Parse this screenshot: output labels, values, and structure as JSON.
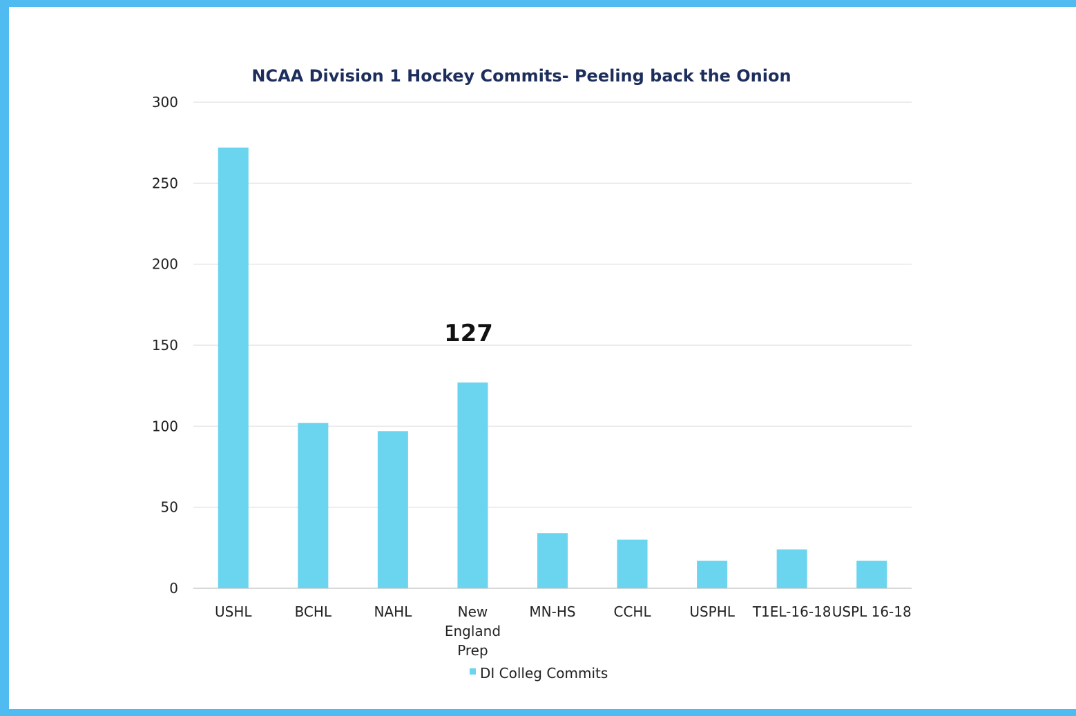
{
  "colors": {
    "frame": "#4fbbf0",
    "bar": "#6bd4ee",
    "gridline": "#e6e6e6",
    "title": "#1d2e5c"
  },
  "chart_data": {
    "type": "bar",
    "title": "NCAA Division 1 Hockey Commits- Peeling back the Onion",
    "xlabel": "",
    "ylabel": "",
    "categories": [
      "USHL",
      "BCHL",
      "NAHL",
      "New England Prep",
      "MN-HS",
      "CCHL",
      "USPHL",
      "T1EL-16-18",
      "USPL 16-18"
    ],
    "series": [
      {
        "name": "DI Colleg Commits",
        "values": [
          272,
          102,
          97,
          127,
          34,
          30,
          17,
          24,
          17
        ]
      }
    ],
    "ylim": [
      0,
      300
    ],
    "yticks": [
      0,
      50,
      100,
      150,
      200,
      250,
      300
    ],
    "grid": true,
    "legend_position": "bottom",
    "annotations": [
      {
        "category": "New England Prep",
        "text": "127"
      }
    ]
  }
}
